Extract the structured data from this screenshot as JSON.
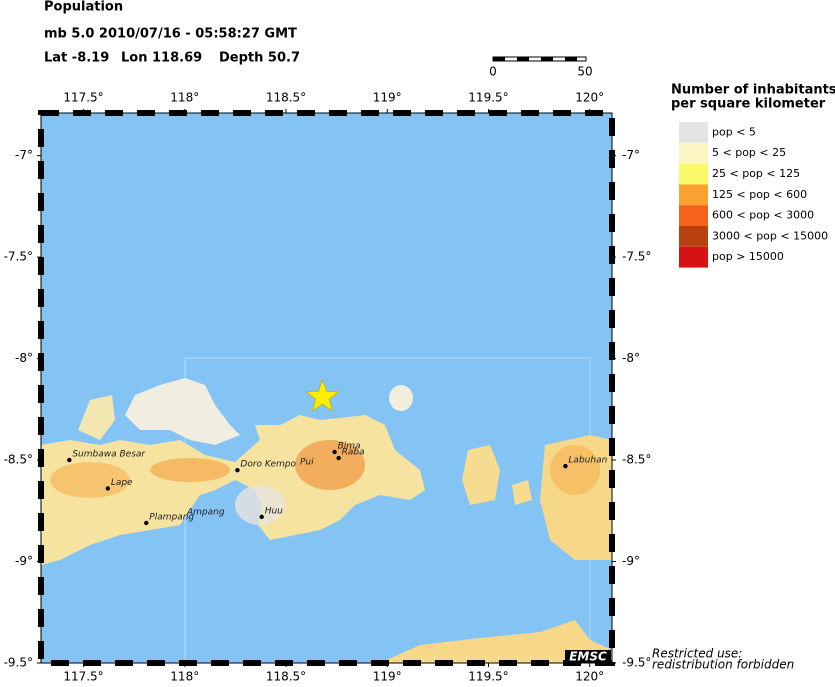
{
  "header": {
    "title": "Population",
    "event": "mb 5.0  2010/07/16 - 05:58:27 GMT",
    "lat": "Lat -8.19",
    "lon": "Lon 118.69",
    "depth": "Depth  50.7"
  },
  "scale_bar": {
    "labels": [
      "0",
      "50"
    ]
  },
  "map": {
    "lonlim": [
      117.29,
      120.11
    ],
    "latlim": [
      -9.5,
      -6.79
    ],
    "lon_ticks": [
      {
        "value": 117.5,
        "label": "117.5°"
      },
      {
        "value": 118,
        "label": "118°"
      },
      {
        "value": 118.5,
        "label": "118.5°"
      },
      {
        "value": 119,
        "label": "119°"
      },
      {
        "value": 119.5,
        "label": "119.5°"
      },
      {
        "value": 120,
        "label": "120°"
      }
    ],
    "lat_ticks": [
      {
        "value": -7,
        "label": "-7°"
      },
      {
        "value": -7.5,
        "label": "-7.5°"
      },
      {
        "value": -8,
        "label": "-8°"
      },
      {
        "value": -8.5,
        "label": "-8.5°"
      },
      {
        "value": -9,
        "label": "-9°"
      },
      {
        "value": -9.5,
        "label": "-9.5°"
      }
    ],
    "epicenter": {
      "lon": 118.68,
      "lat": -8.19,
      "color": "#ffee00"
    },
    "cities": [
      {
        "name": "Sumbawa Besar",
        "lon": 117.43,
        "lat": -8.5
      },
      {
        "name": "Lape",
        "lon": 117.62,
        "lat": -8.64
      },
      {
        "name": "Plampang",
        "lon": 117.81,
        "lat": -8.81
      },
      {
        "name": "Doro Kempo",
        "lon": 118.26,
        "lat": -8.55
      },
      {
        "name": "Huu",
        "lon": 118.38,
        "lat": -8.78
      },
      {
        "name": "Bima",
        "lon": 118.74,
        "lat": -8.46
      },
      {
        "name": "Raba",
        "lon": 118.76,
        "lat": -8.49
      },
      {
        "name": "Labuhan",
        "lon": 119.88,
        "lat": -8.53
      }
    ],
    "place_labels": [
      "Ampang",
      "Pui"
    ]
  },
  "legend": {
    "title": [
      "Number of inhabitants",
      "per square kilometer"
    ],
    "items": [
      {
        "label": "pop < 5",
        "color": "#e3e3e3"
      },
      {
        "label": "5 < pop < 25",
        "color": "#fbf6c2"
      },
      {
        "label": "25 < pop < 125",
        "color": "#fbf86a"
      },
      {
        "label": "125 < pop < 600",
        "color": "#f9a232"
      },
      {
        "label": "600 < pop < 3000",
        "color": "#f5621a"
      },
      {
        "label": "3000 < pop < 15000",
        "color": "#b8420f"
      },
      {
        "label": "pop > 15000",
        "color": "#d71212"
      }
    ]
  },
  "notice": [
    "Restricted use:",
    "redistribution forbidden"
  ],
  "logo": "EMSC"
}
